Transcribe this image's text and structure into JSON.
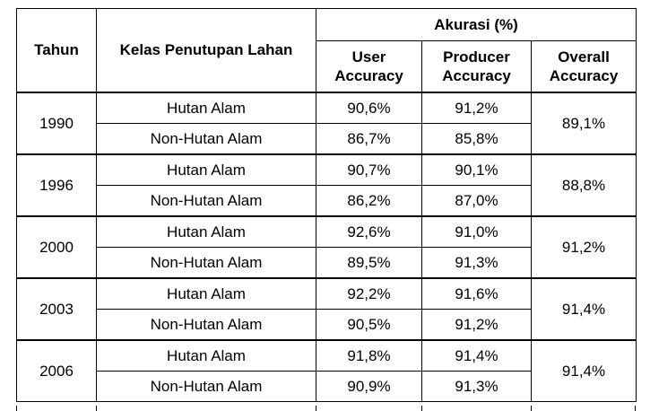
{
  "table": {
    "headers": {
      "tahun": "Tahun",
      "kelas": "Kelas Penutupan Lahan",
      "akurasi": "Akurasi (%)",
      "user": "User Accuracy",
      "producer": "Producer Accuracy",
      "overall": "Overall Accuracy"
    },
    "rows": [
      {
        "year": "1990",
        "overall": "89,1%",
        "classes": [
          {
            "name": "Hutan Alam",
            "user": "90,6%",
            "producer": "91,2%"
          },
          {
            "name": "Non-Hutan Alam",
            "user": "86,7%",
            "producer": "85,8%"
          }
        ]
      },
      {
        "year": "1996",
        "overall": "88,8%",
        "classes": [
          {
            "name": "Hutan Alam",
            "user": "90,7%",
            "producer": "90,1%"
          },
          {
            "name": "Non-Hutan Alam",
            "user": "86,2%",
            "producer": "87,0%"
          }
        ]
      },
      {
        "year": "2000",
        "overall": "91,2%",
        "classes": [
          {
            "name": "Hutan Alam",
            "user": "92,6%",
            "producer": "91,0%"
          },
          {
            "name": "Non-Hutan Alam",
            "user": "89,5%",
            "producer": "91,3%"
          }
        ]
      },
      {
        "year": "2003",
        "overall": "91,4%",
        "classes": [
          {
            "name": "Hutan Alam",
            "user": "92,2%",
            "producer": "91,6%"
          },
          {
            "name": "Non-Hutan Alam",
            "user": "90,5%",
            "producer": "91,2%"
          }
        ]
      },
      {
        "year": "2006",
        "overall": "91,4%",
        "classes": [
          {
            "name": "Hutan Alam",
            "user": "91,8%",
            "producer": "91,4%"
          },
          {
            "name": "Non-Hutan Alam",
            "user": "90,9%",
            "producer": "91,3%"
          }
        ]
      }
    ]
  }
}
